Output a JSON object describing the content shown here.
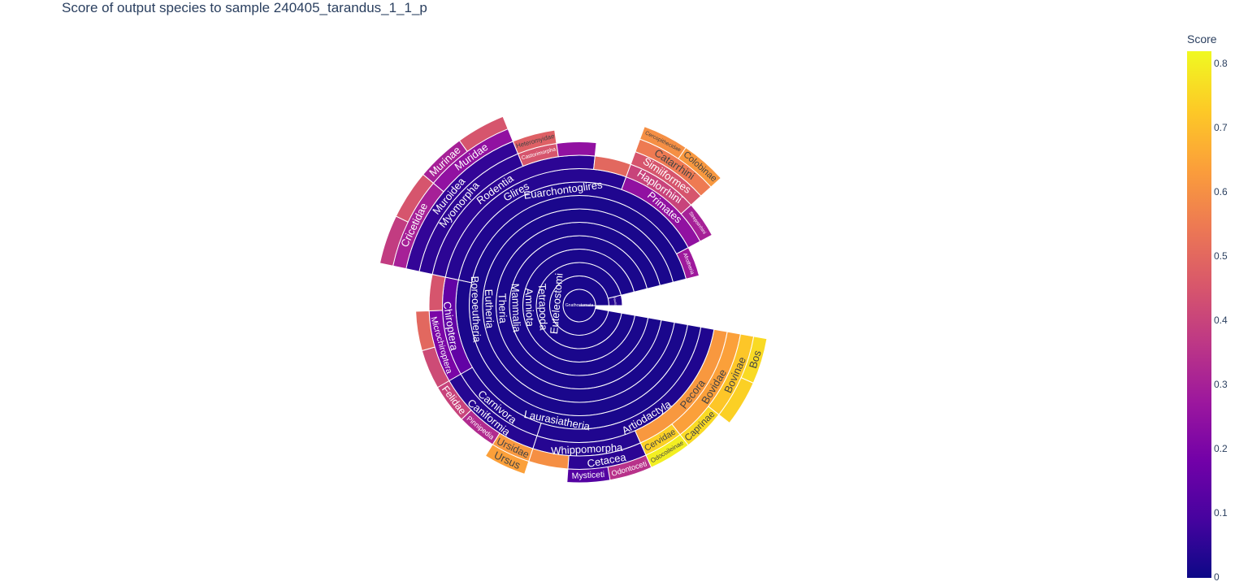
{
  "chart_data": {
    "type": "sunburst",
    "title": "Score of output species to sample 240405_tarandus_1_1_p",
    "colorbar": {
      "title": "Score",
      "range": [
        0,
        0.82
      ],
      "ticks": [
        "0",
        "0.1",
        "0.2",
        "0.3",
        "0.4",
        "0.5",
        "0.6",
        "0.7",
        "0.8"
      ],
      "colorscale": [
        "#0d0887",
        "#46039f",
        "#7201a8",
        "#9c179e",
        "#bd3786",
        "#d8576b",
        "#ed7953",
        "#fb9f3a",
        "#fdca26",
        "#f0f921"
      ]
    },
    "root": {
      "name": "Gnathostomata",
      "score": 0.02,
      "children": [
        {
          "name": "Euteleostomi",
          "score": 0.02,
          "children": [
            {
              "name": "Tetrapoda",
              "score": 0.02,
              "children": [
                {
                  "name": "Amniota",
                  "score": 0.02,
                  "children": [
                    {
                      "name": "Mammalia",
                      "score": 0.02,
                      "children": [
                        {
                          "name": "Theria",
                          "score": 0.02,
                          "children": [
                            {
                              "name": "Eutheria",
                              "score": 0.02,
                              "children": [
                                {
                                  "name": "Boreoeutheria",
                                  "score": 0.02,
                                  "children": [
                                    {
                                      "name": "Laurasiatheria",
                                      "score": 0.02,
                                      "children": [
                                        {
                                          "name": "Artiodactyla",
                                          "score": 0.03,
                                          "children": [
                                            {
                                              "name": "Pecora",
                                              "score": 0.62,
                                              "children": [
                                                {
                                                  "name": "Bovidae",
                                                  "score": 0.64,
                                                  "children": [
                                                    {
                                                      "name": "Bovinae",
                                                      "score": 0.72,
                                                      "children": [
                                                        {
                                                          "name": "Bos",
                                                          "score": 0.76
                                                        },
                                                        {
                                                          "name": "",
                                                          "score": 0.74
                                                        }
                                                      ]
                                                    },
                                                    {
                                                      "name": "Caprinae",
                                                      "score": 0.76
                                                    }
                                                  ]
                                                },
                                                {
                                                  "name": "Cervidae",
                                                  "score": 0.74,
                                                  "children": [
                                                    {
                                                      "name": "Odocoileinae",
                                                      "score": 0.8
                                                    }
                                                  ]
                                                }
                                              ]
                                            },
                                            {
                                              "name": "Whippomorpha",
                                              "score": 0.04,
                                              "children": [
                                                {
                                                  "name": "Cetacea",
                                                  "score": 0.05,
                                                  "children": [
                                                    {
                                                      "name": "Odontoceti",
                                                      "score": 0.35
                                                    },
                                                    {
                                                      "name": "Mysticeti",
                                                      "score": 0.12
                                                    }
                                                  ]
                                                },
                                                {
                                                  "name": "",
                                                  "score": 0.6
                                                }
                                              ]
                                            }
                                          ]
                                        },
                                        {
                                          "name": "Carnivora",
                                          "score": 0.03,
                                          "children": [
                                            {
                                              "name": "Caniformia",
                                              "score": 0.04,
                                              "children": [
                                                {
                                                  "name": "Ursidae",
                                                  "score": 0.62,
                                                  "children": [
                                                    {
                                                      "name": "Ursus",
                                                      "score": 0.64
                                                    }
                                                  ]
                                                },
                                                {
                                                  "name": "Pinnipedia",
                                                  "score": 0.33
                                                },
                                                {
                                                  "name": "Felidae",
                                                  "score": 0.4
                                                }
                                              ]
                                            }
                                          ]
                                        },
                                        {
                                          "name": "Chiroptera",
                                          "score": 0.15,
                                          "children": [
                                            {
                                              "name": "Microchiroptera",
                                              "score": 0.2,
                                              "children": [
                                                {
                                                  "name": "",
                                                  "score": 0.42
                                                },
                                                {
                                                  "name": "",
                                                  "score": 0.5
                                                }
                                              ]
                                            },
                                            {
                                              "name": "",
                                              "score": 0.45
                                            }
                                          ]
                                        }
                                      ]
                                    },
                                    {
                                      "name": "Euarchontoglires",
                                      "score": 0.03,
                                      "children": [
                                        {
                                          "name": "Glires",
                                          "score": 0.04,
                                          "children": [
                                            {
                                              "name": "Rodentia",
                                              "score": 0.05,
                                              "children": [
                                                {
                                                  "name": "Myomorpha",
                                                  "score": 0.05,
                                                  "children": [
                                                    {
                                                      "name": "Muroidea",
                                                      "score": 0.06,
                                                      "children": [
                                                        {
                                                          "name": "Cricetidae",
                                                          "score": 0.3,
                                                          "children": [
                                                            {
                                                              "name": "",
                                                              "score": 0.38
                                                            },
                                                            {
                                                              "name": "",
                                                              "score": 0.45
                                                            }
                                                          ]
                                                        },
                                                        {
                                                          "name": "Muridae",
                                                          "score": 0.25,
                                                          "children": [
                                                            {
                                                              "name": "Murinae",
                                                              "score": 0.3
                                                            },
                                                            {
                                                              "name": "",
                                                              "score": 0.45
                                                            }
                                                          ]
                                                        }
                                                      ]
                                                    }
                                                  ]
                                                },
                                                {
                                                  "name": "Castorimorpha",
                                                  "score": 0.45,
                                                  "children": [
                                                    {
                                                      "name": "Heteromyidae",
                                                      "score": 0.48
                                                    }
                                                  ]
                                                },
                                                {
                                                  "name": "",
                                                  "score": 0.25
                                                }
                                              ]
                                            },
                                            {
                                              "name": "",
                                              "score": 0.5
                                            }
                                          ]
                                        },
                                        {
                                          "name": "Primates",
                                          "score": 0.25,
                                          "children": [
                                            {
                                              "name": "Haplorrhini",
                                              "score": 0.4,
                                              "children": [
                                                {
                                                  "name": "Simiiformes",
                                                  "score": 0.45,
                                                  "children": [
                                                    {
                                                      "name": "Catarrhini",
                                                      "score": 0.55,
                                                      "children": [
                                                        {
                                                          "name": "Cercopithecidae",
                                                          "score": 0.6
                                                        },
                                                        {
                                                          "name": "Colobinae",
                                                          "score": 0.62
                                                        }
                                                      ]
                                                    }
                                                  ]
                                                }
                                              ]
                                            },
                                            {
                                              "name": "Strepsirrhini",
                                              "score": 0.3
                                            }
                                          ]
                                        }
                                      ]
                                    },
                                    {
                                      "name": "Afrotheria",
                                      "score": 0.28
                                    }
                                  ]
                                }
                              ]
                            }
                          ]
                        }
                      ]
                    }
                  ]
                }
              ]
            },
            {
              "name": "Sauria",
              "score": 0.04
            }
          ]
        }
      ]
    }
  }
}
